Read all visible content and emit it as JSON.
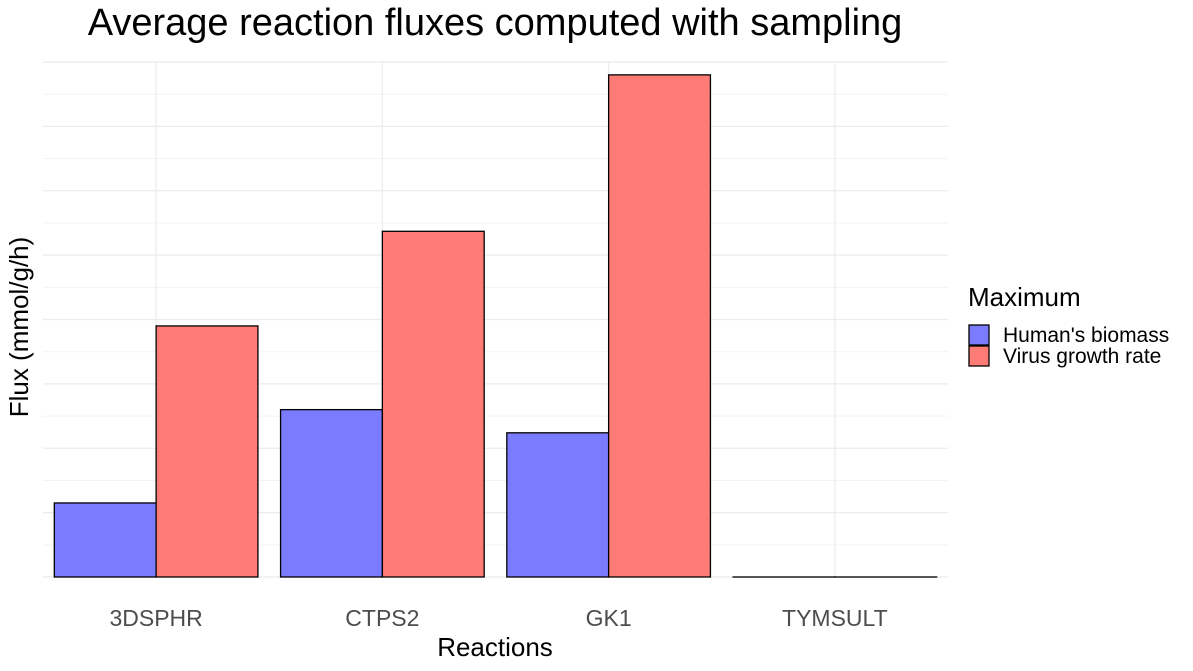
{
  "chart_data": {
    "type": "bar",
    "title": "Average reaction fluxes computed with sampling",
    "xlabel": "Reactions",
    "ylabel": "Flux (mmol/g/h)",
    "categories": [
      "3DSPHR",
      "CTPS2",
      "GK1",
      "TYMSULT"
    ],
    "series": [
      {
        "name": "Human's biomass",
        "values": [
          0.115,
          0.26,
          0.224,
          0.0
        ],
        "color": "#7b7bff"
      },
      {
        "name": "Virus growth rate",
        "values": [
          0.39,
          0.537,
          0.78,
          0.0
        ],
        "color": "#ff7b76"
      }
    ],
    "ylim": [
      0,
      0.8
    ],
    "y_ticks_shown": false,
    "grid": true,
    "legend": {
      "title": "Maximum",
      "position": "right"
    }
  }
}
